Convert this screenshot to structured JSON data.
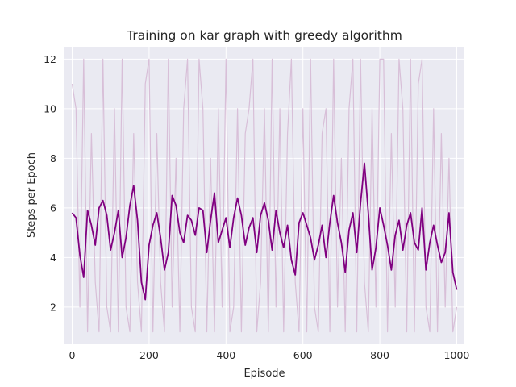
{
  "chart_data": {
    "type": "line",
    "title": "Training on kar graph with greedy algorithm",
    "xlabel": "Episode",
    "ylabel": "Steps per Epoch",
    "xlim": [
      -20,
      1020
    ],
    "ylim": [
      0.5,
      12.5
    ],
    "xticks": [
      0,
      200,
      400,
      600,
      800,
      1000
    ],
    "yticks": [
      2,
      4,
      6,
      8,
      10,
      12
    ],
    "grid": true,
    "legend": "none",
    "series": [
      {
        "role": "raw",
        "color": "#d8bfd8",
        "x_start": 0,
        "x_step": 10,
        "values": [
          11,
          10,
          2,
          12,
          1,
          9,
          3,
          1,
          12,
          2,
          1,
          10,
          1,
          12,
          2,
          1,
          9,
          3,
          1,
          11,
          12,
          1,
          9,
          3,
          1,
          12,
          2,
          8,
          1,
          10,
          12,
          2,
          1,
          12,
          10,
          1,
          8,
          1,
          10,
          2,
          12,
          1,
          2,
          10,
          1,
          9,
          10,
          12,
          1,
          3,
          10,
          1,
          12,
          2,
          10,
          1,
          9,
          12,
          3,
          1,
          10,
          1,
          12,
          2,
          1,
          9,
          10,
          1,
          12,
          2,
          8,
          1,
          10,
          12,
          1,
          12,
          3,
          1,
          10,
          2,
          12,
          12,
          1,
          9,
          2,
          12,
          10,
          1,
          12,
          1,
          11,
          12,
          2,
          1,
          10,
          1,
          9,
          2,
          8,
          1,
          2
        ]
      },
      {
        "role": "smoothed",
        "color": "#800080",
        "x_start": 0,
        "x_step": 10,
        "values": [
          5.8,
          5.6,
          4.1,
          3.2,
          5.9,
          5.3,
          4.5,
          6.0,
          6.3,
          5.7,
          4.3,
          5.0,
          5.9,
          4.0,
          4.8,
          6.1,
          6.9,
          5.5,
          3.0,
          2.3,
          4.5,
          5.3,
          5.8,
          4.8,
          3.5,
          4.2,
          6.5,
          6.1,
          5.0,
          4.6,
          5.7,
          5.5,
          4.9,
          6.0,
          5.9,
          4.2,
          5.5,
          6.6,
          4.6,
          5.1,
          5.6,
          4.4,
          5.6,
          6.4,
          5.7,
          4.5,
          5.2,
          5.6,
          4.2,
          5.7,
          6.2,
          5.5,
          4.3,
          5.9,
          5.0,
          4.4,
          5.3,
          3.9,
          3.3,
          5.4,
          5.8,
          5.3,
          4.8,
          3.9,
          4.5,
          5.3,
          4.0,
          5.4,
          6.5,
          5.4,
          4.6,
          3.4,
          5.1,
          5.8,
          4.2,
          6.2,
          7.8,
          5.8,
          3.5,
          4.4,
          6.0,
          5.3,
          4.5,
          3.5,
          4.9,
          5.5,
          4.3,
          5.3,
          5.8,
          4.6,
          4.3,
          6.0,
          3.5,
          4.6,
          5.3,
          4.5,
          3.8,
          4.2,
          5.8,
          3.4,
          2.7
        ]
      }
    ]
  }
}
